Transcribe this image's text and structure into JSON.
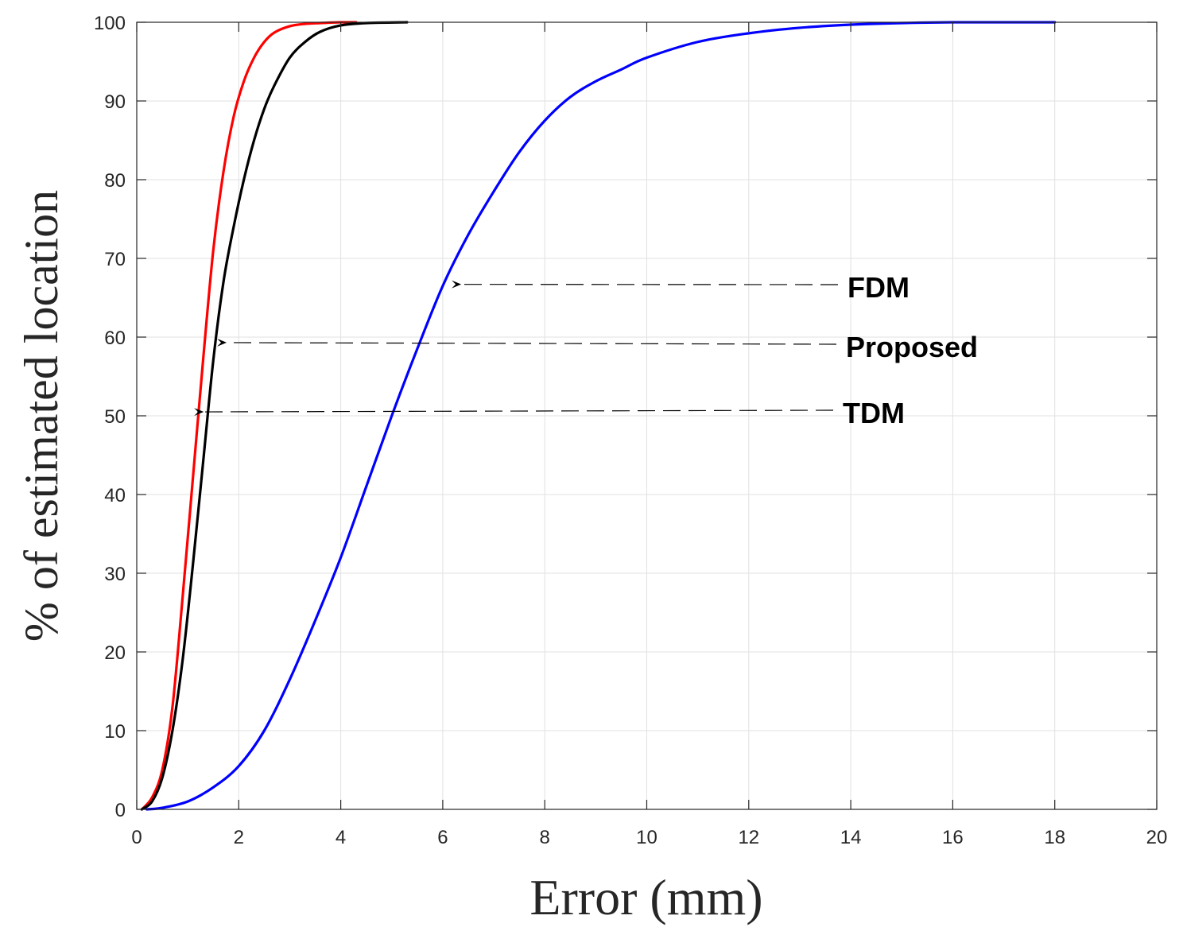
{
  "chart_data": {
    "type": "line",
    "xlabel": "Error (mm)",
    "ylabel": "% of estimated location",
    "xlim": [
      0,
      20
    ],
    "ylim": [
      0,
      100
    ],
    "xticks": [
      0,
      2,
      4,
      6,
      8,
      10,
      12,
      14,
      16,
      18,
      20
    ],
    "yticks": [
      0,
      10,
      20,
      30,
      40,
      50,
      60,
      70,
      80,
      90,
      100
    ],
    "grid": true,
    "series": [
      {
        "name": "TDM",
        "color": "#ff0000",
        "x": [
          0.1,
          0.3,
          0.5,
          0.7,
          0.9,
          1.1,
          1.3,
          1.5,
          1.7,
          1.9,
          2.1,
          2.3,
          2.5,
          2.7,
          3.0,
          3.3,
          3.6,
          4.0,
          4.3
        ],
        "y": [
          0,
          1.5,
          5,
          13,
          27,
          42,
          57,
          71,
          81,
          88,
          92.5,
          95.5,
          97.5,
          98.7,
          99.5,
          99.8,
          99.9,
          100,
          100
        ]
      },
      {
        "name": "Proposed",
        "color": "#000000",
        "x": [
          0.1,
          0.3,
          0.5,
          0.7,
          0.9,
          1.1,
          1.3,
          1.5,
          1.7,
          1.9,
          2.1,
          2.3,
          2.5,
          2.7,
          3.0,
          3.3,
          3.6,
          4.0,
          4.5,
          5.3
        ],
        "y": [
          0,
          1,
          4,
          10,
          19,
          31,
          44,
          57,
          67,
          74,
          80,
          85,
          89,
          92,
          95.5,
          97.5,
          98.8,
          99.6,
          99.9,
          100
        ]
      },
      {
        "name": "FDM",
        "color": "#0000ff",
        "x": [
          0.2,
          0.5,
          1.0,
          1.5,
          2.0,
          2.5,
          3.0,
          3.5,
          4.0,
          4.5,
          5.0,
          5.5,
          6.0,
          6.5,
          7.0,
          7.5,
          8.0,
          8.5,
          9.0,
          9.5,
          10.0,
          11.0,
          12.0,
          13.0,
          14.0,
          15.0,
          16.0,
          17.0,
          18.0
        ],
        "y": [
          0,
          0.2,
          1,
          2.8,
          5.5,
          10,
          16.5,
          24,
          32,
          41,
          50,
          58.5,
          66.5,
          73,
          78.5,
          83.5,
          87.5,
          90.5,
          92.5,
          94,
          95.5,
          97.5,
          98.6,
          99.3,
          99.7,
          99.9,
          100,
          100,
          100
        ]
      }
    ],
    "annotations": [
      {
        "text": "FDM",
        "arrow_to": [
          6.3,
          66.7
        ]
      },
      {
        "text": "Proposed",
        "arrow_to": [
          1.7,
          59.3
        ]
      },
      {
        "text": "TDM",
        "arrow_to": [
          1.25,
          50.5
        ]
      }
    ]
  }
}
